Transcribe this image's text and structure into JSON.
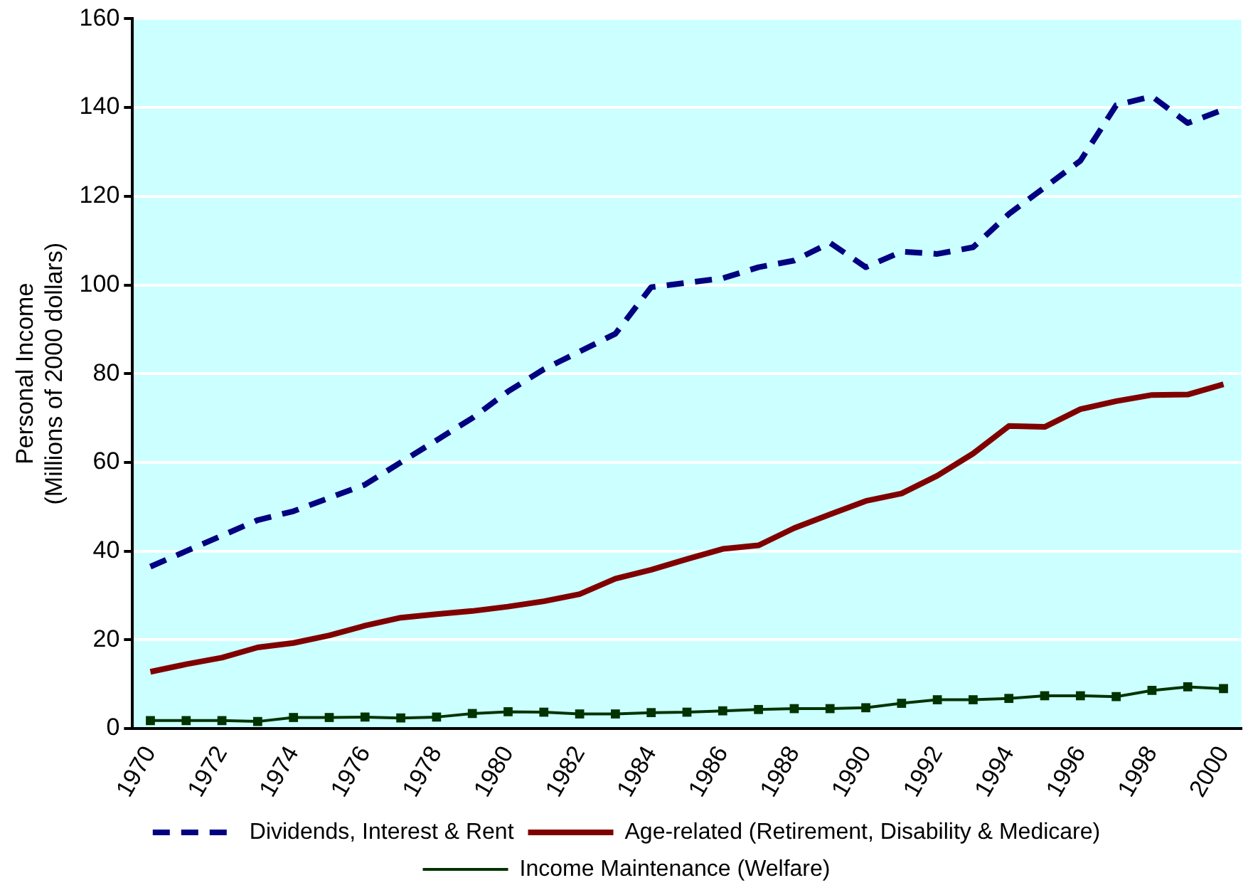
{
  "chart_data": {
    "type": "line",
    "ylabel": "Personal Income\n(Millions of 2000 dollars)",
    "categories": [
      "1970",
      null,
      "1972",
      null,
      "1974",
      null,
      "1976",
      null,
      "1978",
      null,
      "1980",
      null,
      "1982",
      null,
      "1984",
      null,
      "1986",
      null,
      "1988",
      null,
      "1990",
      null,
      "1992",
      null,
      "1994",
      null,
      "1996",
      null,
      "1998",
      null,
      "2000"
    ],
    "series": [
      {
        "name": "Dividends, Interest & Rent",
        "color": "#000080",
        "line_style": "dashed",
        "marker": "none",
        "values": [
          36.5,
          40,
          43.5,
          47,
          49,
          52,
          55,
          60,
          65,
          70,
          76,
          81,
          85,
          89,
          99.5,
          100.5,
          101.5,
          104,
          105.5,
          109.5,
          104,
          107.5,
          107,
          108.5,
          116,
          122,
          128,
          140.5,
          142.5,
          136.5,
          139.5
        ]
      },
      {
        "name": "Age-related (Retirement, Disability & Medicare)",
        "color": "#800000",
        "line_style": "solid",
        "marker": "none",
        "values": [
          12.8,
          14.5,
          16,
          18.3,
          19.3,
          21,
          23.2,
          25,
          25.8,
          26.5,
          27.5,
          28.7,
          30.3,
          33.8,
          35.8,
          38.2,
          40.5,
          41.3,
          45.2,
          48.3,
          51.3,
          53,
          57,
          62,
          68.2,
          68,
          72,
          73.8,
          75.2,
          75.3,
          77.6
        ]
      },
      {
        "name": "Income Maintenance (Welfare)",
        "color": "#003300",
        "line_style": "solid",
        "marker": "square",
        "values": [
          1.8,
          1.8,
          1.8,
          1.6,
          2.5,
          2.5,
          2.6,
          2.4,
          2.6,
          3.4,
          3.8,
          3.7,
          3.3,
          3.3,
          3.6,
          3.7,
          4,
          4.3,
          4.5,
          4.5,
          4.7,
          5.7,
          6.5,
          6.5,
          6.8,
          7.4,
          7.4,
          7.2,
          8.6,
          9.4,
          9.0
        ]
      }
    ],
    "ylim": [
      0,
      160
    ],
    "yticks": [
      0,
      20,
      40,
      60,
      80,
      100,
      120,
      140,
      160
    ],
    "grid": "y",
    "legend": "bottom"
  }
}
